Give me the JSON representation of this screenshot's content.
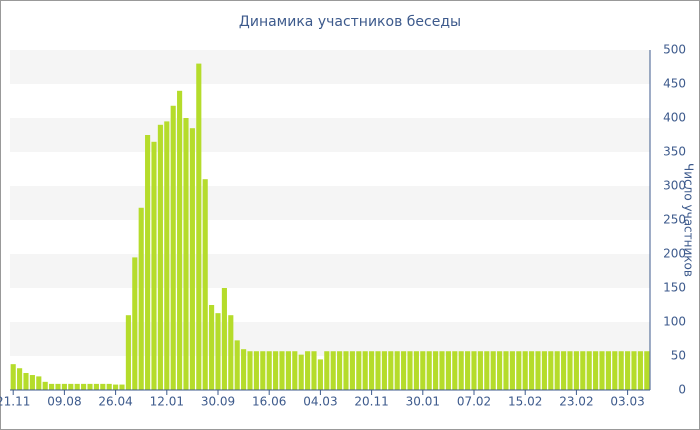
{
  "chart_data": {
    "type": "bar",
    "title": "Динамика участников беседы",
    "y_label": "Число участников",
    "categories": [
      "21.11",
      null,
      null,
      null,
      null,
      null,
      null,
      null,
      "09.08",
      null,
      null,
      null,
      null,
      null,
      null,
      null,
      "26.04",
      null,
      null,
      null,
      null,
      null,
      null,
      null,
      "12.01",
      null,
      null,
      null,
      null,
      null,
      null,
      null,
      "30.09",
      null,
      null,
      null,
      null,
      null,
      null,
      null,
      "16.06",
      null,
      null,
      null,
      null,
      null,
      null,
      null,
      "04.03",
      null,
      null,
      null,
      null,
      null,
      null,
      null,
      "20.11",
      null,
      null,
      null,
      null,
      null,
      null,
      null,
      "30.01",
      null,
      null,
      null,
      null,
      null,
      null,
      null,
      "07.02",
      null,
      null,
      null,
      null,
      null,
      null,
      null,
      "15.02",
      null,
      null,
      null,
      null,
      null,
      null,
      null,
      "23.02",
      null,
      null,
      null,
      null,
      null,
      null,
      null,
      "03.03",
      null,
      null,
      null
    ],
    "values": [
      38,
      32,
      25,
      22,
      20,
      12,
      9,
      9,
      9,
      9,
      9,
      9,
      9,
      9,
      9,
      9,
      8,
      8,
      110,
      195,
      268,
      375,
      365,
      390,
      395,
      418,
      440,
      400,
      385,
      480,
      310,
      125,
      113,
      150,
      110,
      73,
      60,
      57,
      57,
      57,
      57,
      57,
      57,
      57,
      57,
      52,
      57,
      57,
      45,
      57,
      57,
      57,
      57,
      57,
      57,
      57,
      57,
      57,
      57,
      57,
      57,
      57,
      57,
      57,
      57,
      57,
      57,
      57,
      57,
      57,
      57,
      57,
      57,
      57,
      57,
      57,
      57,
      57,
      57,
      57,
      57,
      57,
      57,
      57,
      57,
      57,
      57,
      57,
      57,
      57,
      57,
      57,
      57,
      57,
      57,
      57,
      57,
      57,
      57,
      57
    ],
    "color": "#b5dc2b",
    "ylim": [
      0,
      500
    ],
    "yticks": [
      0,
      50,
      100,
      150,
      200,
      250,
      300,
      350,
      400,
      450,
      500
    ],
    "grid": true,
    "y_axis_side": "right"
  }
}
